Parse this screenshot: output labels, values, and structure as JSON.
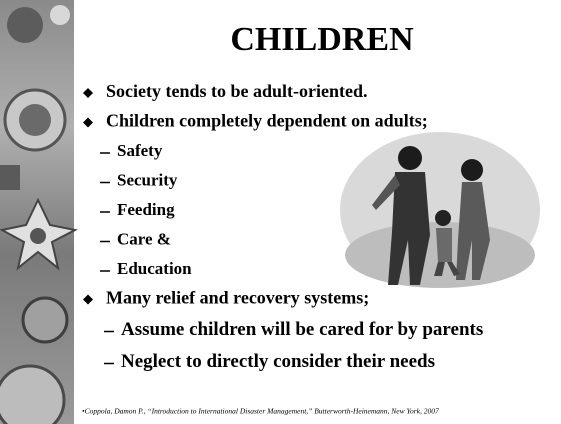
{
  "title": "CHILDREN",
  "items": [
    {
      "text": "Society tends to be adult-oriented."
    },
    {
      "text": "Children completely dependent on adults;",
      "subitems": [
        "Safety",
        "Security",
        "Feeding",
        "Care &",
        "Education"
      ]
    },
    {
      "text": "Many relief and recovery systems;",
      "subitems": [
        "Assume children will be cared for by parents",
        "Neglect to directly consider their needs"
      ]
    }
  ],
  "footnote": "•Coppola, Damon P., “Introduction to International Disaster Management,” Butterworth-Heinemann, New York, 2007"
}
